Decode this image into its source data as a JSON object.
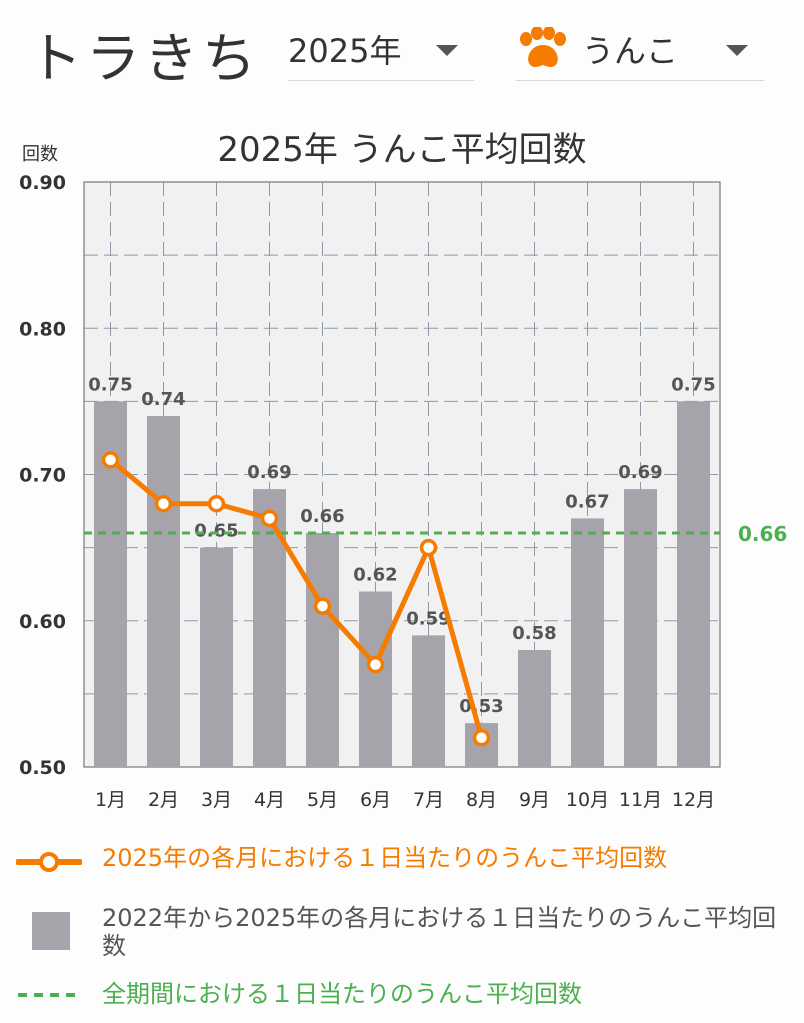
{
  "header": {
    "app_name": "トラきち",
    "year_select": {
      "value": "2025年"
    },
    "type_select": {
      "value": "うんこ",
      "icon": "paw-icon",
      "icon_color": "#f57c00"
    }
  },
  "chart_data": {
    "type": "bar",
    "title": "2025年 うんこ平均回数",
    "ylabel": "回数",
    "xlabel": "",
    "ylim": [
      0.5,
      0.9
    ],
    "yticks": [
      "0.90",
      "0.80",
      "0.70",
      "0.60",
      "0.50"
    ],
    "categories": [
      "1月",
      "2月",
      "3月",
      "4月",
      "5月",
      "6月",
      "7月",
      "8月",
      "9月",
      "10月",
      "11月",
      "12月"
    ],
    "grid": true,
    "legend_position": "bottom",
    "series": [
      {
        "kind": "bar",
        "values": [
          0.75,
          0.74,
          0.65,
          0.69,
          0.66,
          0.62,
          0.59,
          0.53,
          0.58,
          0.67,
          0.69,
          0.75
        ],
        "labels": [
          "0.75",
          "0.74",
          "0.65",
          "0.69",
          "0.66",
          "0.62",
          "0.59",
          "0.53",
          "0.58",
          "0.67",
          "0.69",
          "0.75"
        ],
        "color": "#a6a4aa"
      },
      {
        "kind": "line",
        "values": [
          0.71,
          0.68,
          0.68,
          0.67,
          0.61,
          0.57,
          0.65,
          0.52,
          null,
          null,
          null,
          null
        ],
        "color": "#f57c00"
      },
      {
        "kind": "hline",
        "value": 0.66,
        "label": "0.66",
        "color": "#4caf50"
      }
    ]
  },
  "legend": {
    "line_label": "2025年の各月における１日当たりのうんこ平均回数",
    "bar_label": "2022年から2025年の各月における１日当たりのうんこ平均回数",
    "avg_label": "全期間における１日当たりのうんこ平均回数"
  },
  "colors": {
    "orange": "#f57c00",
    "green": "#4caf50",
    "bar": "#a6a4aa",
    "plot_bg": "#f1f1f1"
  }
}
